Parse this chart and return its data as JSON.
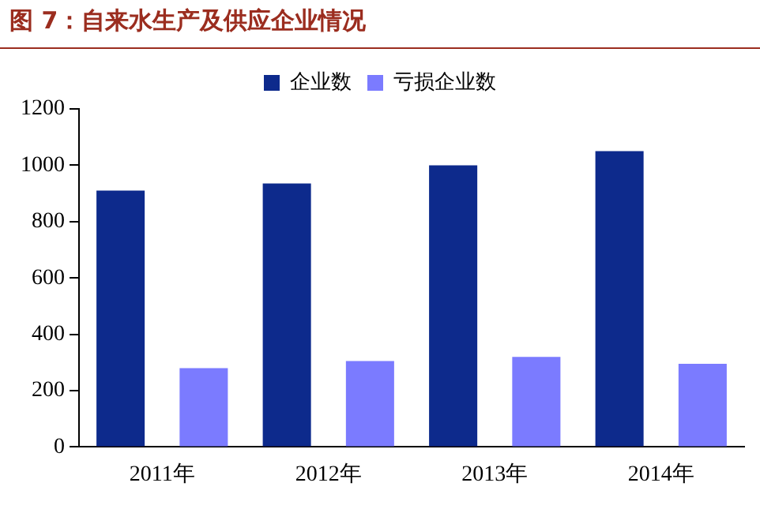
{
  "chart_data": {
    "type": "bar",
    "title": "图 7：自来水生产及供应企业情况",
    "categories": [
      "2011年",
      "2012年",
      "2013年",
      "2014年"
    ],
    "series": [
      {
        "name": "企业数",
        "color": "#0d2a8c",
        "values": [
          910,
          935,
          1000,
          1050
        ]
      },
      {
        "name": "亏损企业数",
        "color": "#7b7bff",
        "values": [
          280,
          305,
          320,
          295
        ]
      }
    ],
    "ylim": [
      0,
      1200
    ],
    "yticks": [
      0,
      200,
      400,
      600,
      800,
      1000,
      1200
    ],
    "grid": false,
    "legend": "top"
  }
}
